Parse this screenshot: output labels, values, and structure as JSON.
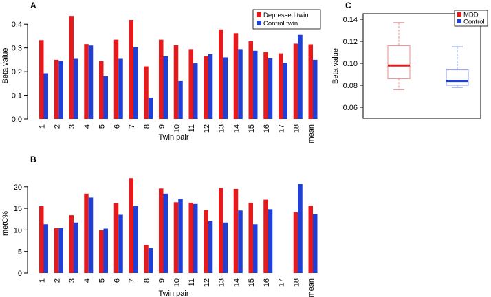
{
  "colors": {
    "depressed": "#e41a1c",
    "control": "#1f3fd6",
    "mdd_box": "#e41a1c",
    "control_box": "#1f3fd6"
  },
  "chart_data": [
    {
      "panel": "A",
      "type": "bar",
      "xlabel": "Twin pair",
      "ylabel": "Beta value",
      "ylim": [
        0,
        0.45
      ],
      "yticks": [
        "0.0",
        "0.1",
        "0.2",
        "0.3",
        "0.4"
      ],
      "categories": [
        "1",
        "2",
        "3",
        "4",
        "5",
        "6",
        "7",
        "8",
        "9",
        "10",
        "11",
        "12",
        "13",
        "14",
        "15",
        "16",
        "17",
        "18",
        "mean"
      ],
      "series": [
        {
          "name": "Depressed twin",
          "values": [
            0.333,
            0.25,
            0.435,
            0.316,
            0.244,
            0.335,
            0.418,
            0.222,
            0.335,
            0.311,
            0.295,
            0.265,
            0.378,
            0.362,
            0.328,
            0.283,
            0.277,
            0.318,
            0.315
          ]
        },
        {
          "name": "Control twin",
          "values": [
            0.193,
            0.245,
            0.254,
            0.31,
            0.18,
            0.254,
            0.303,
            0.09,
            0.265,
            0.16,
            0.235,
            0.273,
            0.26,
            0.295,
            0.288,
            0.256,
            0.238,
            0.355,
            0.25
          ]
        }
      ],
      "legend": [
        "Depressed twin",
        "Control twin"
      ]
    },
    {
      "panel": "B",
      "type": "bar",
      "xlabel": "Twin pair",
      "ylabel": "metC%",
      "ylim": [
        0,
        23
      ],
      "yticks": [
        "0",
        "5",
        "10",
        "15",
        "20"
      ],
      "categories": [
        "1",
        "2",
        "3",
        "4",
        "5",
        "6",
        "7",
        "8",
        "9",
        "10",
        "11",
        "12",
        "13",
        "14",
        "15",
        "16",
        "17",
        "18",
        "mean"
      ],
      "series": [
        {
          "name": "Depressed twin",
          "values": [
            15.5,
            10.4,
            13.4,
            18.4,
            9.9,
            16.2,
            22.0,
            6.5,
            19.6,
            16.4,
            16.3,
            14.6,
            19.7,
            19.5,
            16.3,
            17.0,
            null,
            14.1,
            15.6
          ]
        },
        {
          "name": "Control twin",
          "values": [
            11.3,
            10.4,
            11.7,
            17.5,
            10.3,
            13.5,
            15.5,
            5.8,
            18.4,
            17.2,
            16.0,
            12.0,
            11.7,
            14.5,
            11.3,
            14.8,
            null,
            20.7,
            13.6
          ]
        }
      ]
    },
    {
      "panel": "C",
      "type": "box",
      "ylabel": "Beta value",
      "ylim": [
        0.05,
        0.145
      ],
      "yticks": [
        "0.06",
        "0.08",
        "0.10",
        "0.12",
        "0.14"
      ],
      "legend": [
        "MDD",
        "Control"
      ],
      "boxes": [
        {
          "name": "MDD",
          "min": 0.076,
          "q1": 0.086,
          "median": 0.098,
          "q3": 0.116,
          "max": 0.137
        },
        {
          "name": "Control",
          "min": 0.078,
          "q1": 0.08,
          "median": 0.084,
          "q3": 0.094,
          "max": 0.115
        }
      ]
    }
  ]
}
